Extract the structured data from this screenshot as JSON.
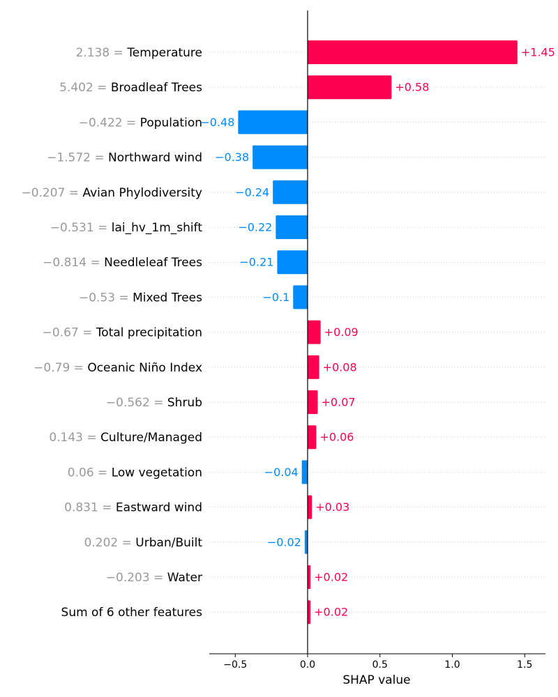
{
  "chart_data": {
    "type": "bar",
    "orientation": "horizontal",
    "chart_kind": "SHAP waterfall-style bar plot",
    "title": "",
    "xlabel": "SHAP value",
    "ylabel": "",
    "xlim": [
      -0.68,
      1.65
    ],
    "x_ticks": [
      {
        "value": -0.5,
        "label": "−0.5"
      },
      {
        "value": 0.0,
        "label": "0.0"
      },
      {
        "value": 0.5,
        "label": "0.5"
      },
      {
        "value": 1.0,
        "label": "1.0"
      },
      {
        "value": 1.5,
        "label": "1.5"
      }
    ],
    "grid": "dotted horizontal guide lines per row",
    "legend": "none",
    "colors": {
      "positive": "#ff0051",
      "negative": "#008bfb",
      "feature_value": "#999999",
      "feature_name": "#000000",
      "zero_line": "#000000",
      "guide_line": "#cccccc"
    },
    "rows": [
      {
        "feature_value": "2.138 = ",
        "feature": "Temperature",
        "value": 1.45,
        "label": "+1.45"
      },
      {
        "feature_value": "5.402 = ",
        "feature": "Broadleaf Trees",
        "value": 0.58,
        "label": "+0.58"
      },
      {
        "feature_value": "−0.422 = ",
        "feature": "Population",
        "value": -0.48,
        "label": "−0.48"
      },
      {
        "feature_value": "−1.572 = ",
        "feature": "Northward wind",
        "value": -0.38,
        "label": "−0.38"
      },
      {
        "feature_value": "−0.207 = ",
        "feature": "Avian Phylodiversity",
        "value": -0.24,
        "label": "−0.24"
      },
      {
        "feature_value": "−0.531 = ",
        "feature": "lai_hv_1m_shift",
        "value": -0.22,
        "label": "−0.22"
      },
      {
        "feature_value": "−0.814 = ",
        "feature": "Needleleaf Trees",
        "value": -0.21,
        "label": "−0.21"
      },
      {
        "feature_value": "−0.53 = ",
        "feature": "Mixed Trees",
        "value": -0.1,
        "label": "−0.1"
      },
      {
        "feature_value": "−0.67 = ",
        "feature": "Total precipitation",
        "value": 0.09,
        "label": "+0.09"
      },
      {
        "feature_value": "−0.79 = ",
        "feature": "Oceanic Niño Index",
        "value": 0.08,
        "label": "+0.08"
      },
      {
        "feature_value": "−0.562 = ",
        "feature": "Shrub",
        "value": 0.07,
        "label": "+0.07"
      },
      {
        "feature_value": "0.143 = ",
        "feature": "Culture/Managed",
        "value": 0.06,
        "label": "+0.06"
      },
      {
        "feature_value": "0.06 = ",
        "feature": "Low vegetation",
        "value": -0.04,
        "label": "−0.04"
      },
      {
        "feature_value": "0.831 = ",
        "feature": "Eastward wind",
        "value": 0.03,
        "label": "+0.03"
      },
      {
        "feature_value": "0.202 = ",
        "feature": "Urban/Built",
        "value": -0.02,
        "label": "−0.02"
      },
      {
        "feature_value": "−0.203 = ",
        "feature": "Water",
        "value": 0.02,
        "label": "+0.02"
      },
      {
        "feature_value": "",
        "feature": "Sum of 6 other features",
        "value": 0.02,
        "label": "+0.02"
      }
    ]
  }
}
